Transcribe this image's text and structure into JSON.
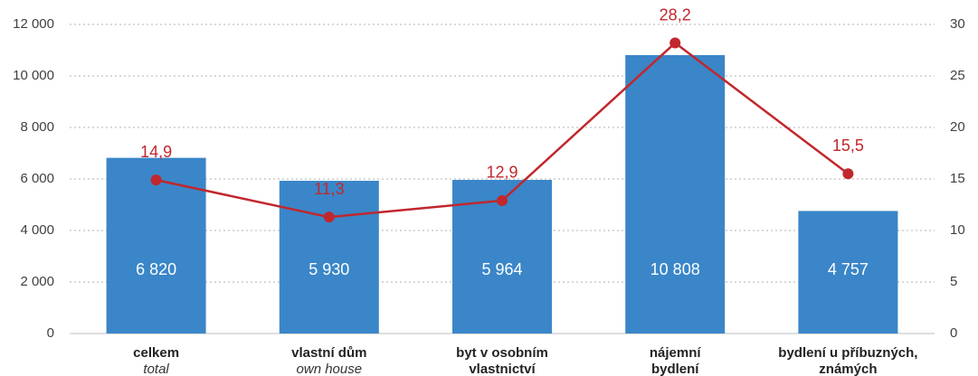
{
  "chart_data": {
    "type": "bar-line",
    "categories": [
      [
        "celkem"
      ],
      [
        "vlastní dům"
      ],
      [
        "byt v osobním",
        "vlastnictví"
      ],
      [
        "nájemní",
        "bydlení"
      ],
      [
        "bydlení u příbuzných,",
        "známých"
      ]
    ],
    "category_translations": [
      "total",
      "own house",
      null,
      null,
      null
    ],
    "series": [
      {
        "type": "bar",
        "color": "#3a86c8",
        "values": [
          6820,
          5930,
          5964,
          10808,
          4757
        ],
        "value_labels": [
          "6 820",
          "5 930",
          "5 964",
          "10 808",
          "4 757"
        ]
      },
      {
        "type": "line",
        "axis": "y2",
        "color": "#c1272d",
        "values": [
          14.9,
          11.3,
          12.9,
          28.2,
          15.5
        ],
        "value_labels": [
          "14,9",
          "11,3",
          "12,9",
          "28,2",
          "15,5"
        ]
      }
    ],
    "ylim": [
      0,
      12000
    ],
    "yticks": [
      0,
      {
        "value": 2000,
        "label": "2 000"
      },
      {
        "value": 4000,
        "label": "4 000"
      },
      {
        "value": 6000,
        "label": "6 000"
      },
      {
        "value": 8000,
        "label": "8 000"
      },
      {
        "value": 10000,
        "label": "10 000"
      },
      {
        "value": 12000,
        "label": "12 000"
      }
    ],
    "y2lim": [
      0,
      30
    ],
    "y2ticks": [
      0,
      5,
      10,
      15,
      20,
      25,
      30
    ],
    "grid": true
  }
}
